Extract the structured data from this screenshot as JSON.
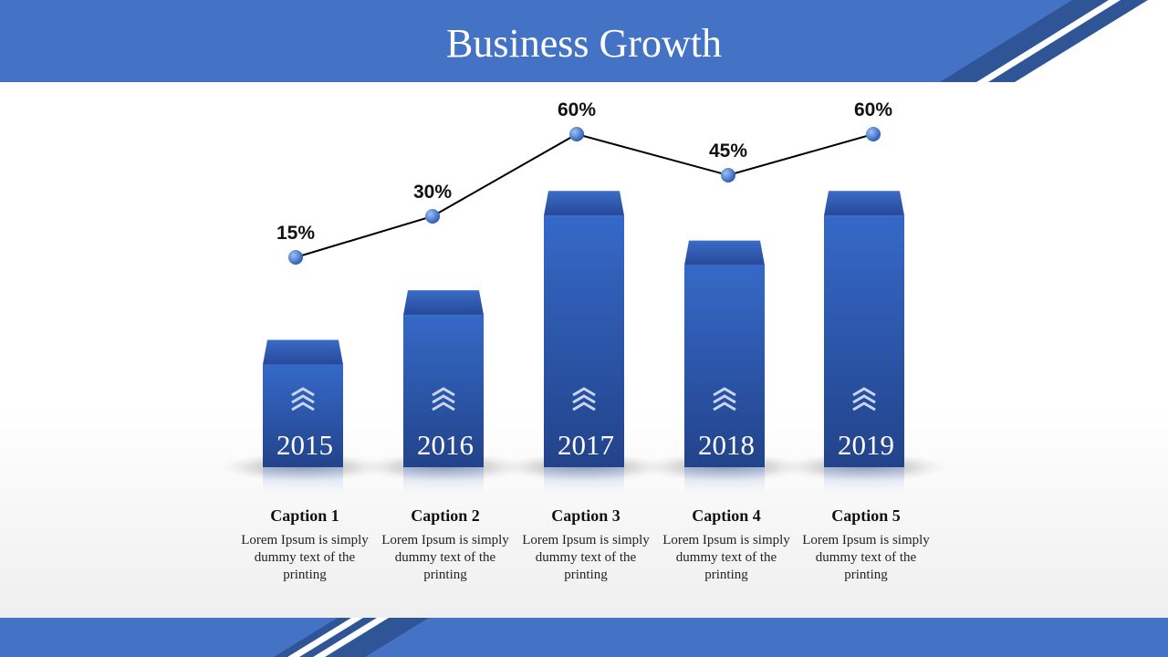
{
  "title": "Business Growth",
  "colors": {
    "header": "#4472c4",
    "bar_top": "#3569c8",
    "bar_bottom": "#22438a",
    "cap": "#2f57ad",
    "point": "#4a7fd8",
    "line": "#000000"
  },
  "chart_data": {
    "type": "bar",
    "categories": [
      "2015",
      "2016",
      "2017",
      "2018",
      "2019"
    ],
    "bar_values": [
      15,
      30,
      60,
      45,
      60
    ],
    "line_series": {
      "values": [
        15,
        30,
        60,
        45,
        60
      ],
      "labels": [
        "15%",
        "30%",
        "60%",
        "45%",
        "60%"
      ]
    },
    "xlabel": "",
    "ylabel": "",
    "grid": false,
    "legend": "none"
  },
  "captions": [
    {
      "title": "Caption 1",
      "text": "Lorem Ipsum is simply dummy text of the printing"
    },
    {
      "title": "Caption 2",
      "text": "Lorem Ipsum is simply dummy text of the printing"
    },
    {
      "title": "Caption 3",
      "text": "Lorem Ipsum is simply dummy text of the printing"
    },
    {
      "title": "Caption 4",
      "text": "Lorem Ipsum is simply dummy text of the printing"
    },
    {
      "title": "Caption 5",
      "text": "Lorem Ipsum is simply dummy text of the printing"
    }
  ]
}
